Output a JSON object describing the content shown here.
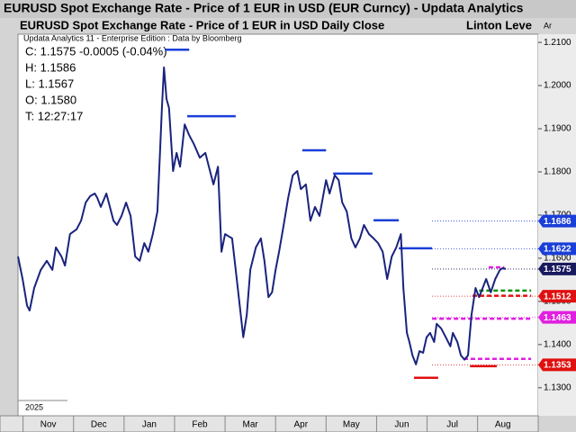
{
  "chart_data": {
    "type": "line",
    "title": "EURUSD Spot Exchange Rate - Price of 1 EUR in USD (EUR Curncy) -  Updata Analytics",
    "subtitle": "EURUSD Spot Exchange Rate - Price of 1 EUR in USD Daily Close",
    "subtitle_right": "Linton Leve",
    "source": "Updata Analytics 11 - Enterprise Edition : Data by Bloomberg",
    "axis_header": "Ar",
    "info": [
      "C: 1.1575  -0.0005 (-0.04%)",
      "H: 1.1586",
      "L: 1.1567",
      "O: 1.1580",
      "T: 12:27:17"
    ],
    "year_label": "2025",
    "xlim": [
      -0.1,
      10.2
    ],
    "xticks": [
      {
        "value": 0.5,
        "label": "Nov"
      },
      {
        "value": 1.5,
        "label": "Dec"
      },
      {
        "value": 2.5,
        "label": "Jan"
      },
      {
        "value": 3.5,
        "label": "Feb"
      },
      {
        "value": 4.5,
        "label": "Mar"
      },
      {
        "value": 5.5,
        "label": "Apr"
      },
      {
        "value": 6.5,
        "label": "May"
      },
      {
        "value": 7.5,
        "label": "Jun"
      },
      {
        "value": 8.5,
        "label": "Jul"
      },
      {
        "value": 9.5,
        "label": "Aug"
      }
    ],
    "ylim": [
      1.1235,
      1.2119
    ],
    "yticks": [
      {
        "value": 1.13,
        "label": "1.1300"
      },
      {
        "value": 1.14,
        "label": "1.1400"
      },
      {
        "value": 1.15,
        "label": "1.1500"
      },
      {
        "value": 1.16,
        "label": "1.1600"
      },
      {
        "value": 1.17,
        "label": "1.1700"
      },
      {
        "value": 1.18,
        "label": "1.1800"
      },
      {
        "value": 1.19,
        "label": "1.1900"
      },
      {
        "value": 1.2,
        "label": "1.2000"
      },
      {
        "value": 1.21,
        "label": "1.2100"
      }
    ],
    "grid": false,
    "series": [
      {
        "color": "#1a237e",
        "x": [
          -0.1,
          -0.01,
          0.08,
          0.13,
          0.22,
          0.35,
          0.47,
          0.58,
          0.65,
          0.76,
          0.83,
          0.93,
          1.06,
          1.15,
          1.24,
          1.33,
          1.42,
          1.47,
          1.54,
          1.65,
          1.72,
          1.79,
          1.86,
          1.95,
          2.04,
          2.13,
          2.22,
          2.31,
          2.4,
          2.48,
          2.57,
          2.66,
          2.72,
          2.75,
          2.79,
          2.84,
          2.89,
          2.97,
          3.04,
          3.11,
          3.2,
          3.29,
          3.38,
          3.5,
          3.61,
          3.68,
          3.77,
          3.86,
          3.93,
          4.0,
          4.14,
          4.21,
          4.29,
          4.36,
          4.43,
          4.5,
          4.61,
          4.71,
          4.78,
          4.86,
          4.93,
          5.0,
          5.07,
          5.16,
          5.25,
          5.34,
          5.43,
          5.5,
          5.6,
          5.69,
          5.78,
          5.87,
          6.0,
          6.07,
          6.17,
          6.25,
          6.32,
          6.41,
          6.5,
          6.58,
          6.67,
          6.75,
          6.85,
          6.94,
          7.03,
          7.12,
          7.21,
          7.3,
          7.39,
          7.48,
          7.53,
          7.6,
          7.65,
          7.71,
          7.78,
          7.85,
          7.92,
          7.99,
          8.06,
          8.14,
          8.19,
          8.28,
          8.37,
          8.46,
          8.51,
          8.6,
          8.67,
          8.74,
          8.81,
          8.88,
          8.96,
          9.03,
          9.1,
          9.17,
          9.26,
          9.35,
          9.44,
          9.49,
          9.56
        ],
        "values": [
          1.1604,
          1.1552,
          1.149,
          1.1479,
          1.1531,
          1.1573,
          1.1594,
          1.1573,
          1.1625,
          1.1604,
          1.1583,
          1.1656,
          1.1667,
          1.1687,
          1.1729,
          1.1744,
          1.175,
          1.174,
          1.1719,
          1.175,
          1.1719,
          1.1687,
          1.1677,
          1.1698,
          1.1729,
          1.1698,
          1.1604,
          1.1594,
          1.1635,
          1.1615,
          1.1656,
          1.1708,
          1.1865,
          1.1948,
          1.2042,
          1.1969,
          1.1948,
          1.1802,
          1.1844,
          1.1812,
          1.191,
          1.1885,
          1.1865,
          1.1833,
          1.1844,
          1.1812,
          1.1771,
          1.1812,
          1.1615,
          1.1656,
          1.1646,
          1.1573,
          1.149,
          1.1417,
          1.1469,
          1.1573,
          1.1625,
          1.1646,
          1.1594,
          1.151,
          1.1521,
          1.1573,
          1.1615,
          1.1677,
          1.174,
          1.1792,
          1.1802,
          1.176,
          1.1771,
          1.1687,
          1.1719,
          1.1698,
          1.1781,
          1.175,
          1.1792,
          1.1781,
          1.1729,
          1.1708,
          1.1646,
          1.1625,
          1.1646,
          1.1677,
          1.1656,
          1.1646,
          1.1635,
          1.1615,
          1.1552,
          1.1604,
          1.1625,
          1.1656,
          1.1531,
          1.1427,
          1.1406,
          1.1375,
          1.1354,
          1.1385,
          1.1381,
          1.1417,
          1.1427,
          1.1406,
          1.1448,
          1.1437,
          1.1417,
          1.1396,
          1.1427,
          1.1406,
          1.1375,
          1.1365,
          1.1375,
          1.1469,
          1.1531,
          1.151,
          1.1531,
          1.1552,
          1.1521,
          1.1552,
          1.1573,
          1.1577,
          1.1575
        ]
      }
    ],
    "levels": [
      {
        "value": 1.2083,
        "x": [
          2.81,
          3.29
        ],
        "color": "#1a3fd8",
        "dashed": false
      },
      {
        "value": 1.1929,
        "x": [
          3.25,
          4.21
        ],
        "color": "#1a3fd8",
        "dashed": false
      },
      {
        "value": 1.185,
        "x": [
          5.53,
          6.0
        ],
        "color": "#1a3fd8",
        "dashed": false
      },
      {
        "value": 1.1796,
        "x": [
          6.14,
          6.92
        ],
        "color": "#1a3fd8",
        "dashed": false
      },
      {
        "value": 1.1688,
        "x": [
          6.94,
          7.44
        ],
        "color": "#1a3fd8",
        "dashed": false
      },
      {
        "value": 1.1623,
        "x": [
          7.44,
          8.1
        ],
        "color": "#1a3fd8",
        "dashed": false
      },
      {
        "value": 1.1579,
        "x": [
          9.22,
          9.53
        ],
        "color": "#e020e0",
        "dashed": true
      },
      {
        "value": 1.1525,
        "x": [
          9.03,
          10.06
        ],
        "color": "#109010",
        "dashed": true
      },
      {
        "value": 1.1513,
        "x": [
          8.9,
          10.06
        ],
        "color": "#e01010",
        "dashed": true
      },
      {
        "value": 1.146,
        "x": [
          8.1,
          10.06
        ],
        "color": "#e020e0",
        "dashed": true
      },
      {
        "value": 1.1367,
        "x": [
          8.72,
          10.06
        ],
        "color": "#e020e0",
        "dashed": true
      },
      {
        "value": 1.135,
        "x": [
          8.85,
          9.38
        ],
        "color": "#e01010",
        "dashed": false
      },
      {
        "value": 1.1323,
        "x": [
          7.74,
          8.22
        ],
        "color": "#e01010",
        "dashed": false
      }
    ],
    "price_tags": [
      {
        "value": 1.1686,
        "color": "#1a3fd8"
      },
      {
        "value": 1.1622,
        "color": "#1a3fd8"
      },
      {
        "value": 1.1575,
        "color": "#1a1a5e"
      },
      {
        "value": 1.1512,
        "color": "#e01010"
      },
      {
        "value": 1.1463,
        "color": "#e020e0"
      },
      {
        "value": 1.1353,
        "color": "#e01010"
      }
    ]
  }
}
